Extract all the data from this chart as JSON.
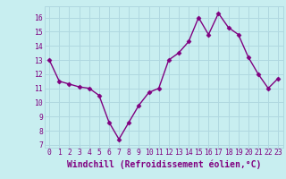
{
  "x": [
    0,
    1,
    2,
    3,
    4,
    5,
    6,
    7,
    8,
    9,
    10,
    11,
    12,
    13,
    14,
    15,
    16,
    17,
    18,
    19,
    20,
    21,
    22,
    23
  ],
  "y": [
    13,
    11.5,
    11.3,
    11.1,
    11.0,
    10.5,
    8.6,
    7.4,
    8.6,
    9.8,
    10.7,
    11.0,
    13.0,
    13.5,
    14.3,
    16.0,
    14.8,
    16.3,
    15.3,
    14.8,
    13.2,
    12.0,
    11.0,
    11.7
  ],
  "line_color": "#800080",
  "marker": "D",
  "marker_size": 2.5,
  "background_color": "#c8eef0",
  "grid_color": "#b0d8e0",
  "xlabel": "Windchill (Refroidissement éolien,°C)",
  "xlim": [
    -0.5,
    23.5
  ],
  "ylim": [
    6.8,
    16.8
  ],
  "yticks": [
    7,
    8,
    9,
    10,
    11,
    12,
    13,
    14,
    15,
    16
  ],
  "xticks": [
    0,
    1,
    2,
    3,
    4,
    5,
    6,
    7,
    8,
    9,
    10,
    11,
    12,
    13,
    14,
    15,
    16,
    17,
    18,
    19,
    20,
    21,
    22,
    23
  ],
  "tick_color": "#800080",
  "tick_fontsize": 5.8,
  "xlabel_fontsize": 7.0,
  "line_width": 1.0
}
